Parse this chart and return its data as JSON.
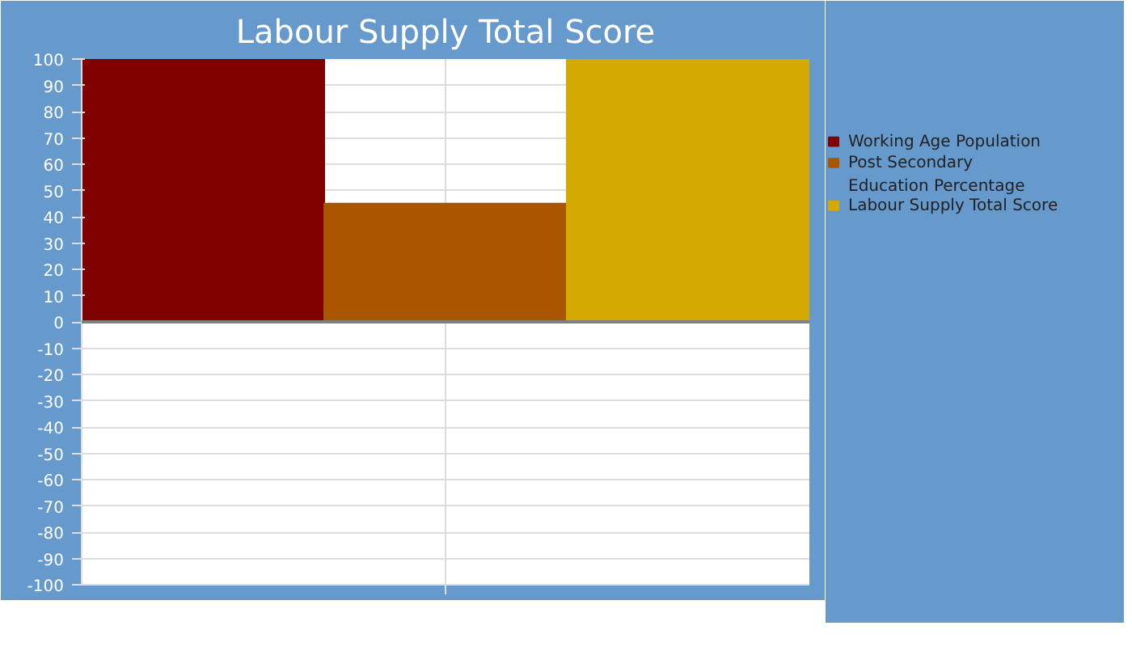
{
  "chart_data": {
    "type": "bar",
    "title": "Labour Supply Total Score",
    "categories": [
      null
    ],
    "series": [
      {
        "name": "Working Age Population",
        "color": "#800000",
        "values": [
          100
        ]
      },
      {
        "name": "Post Secondary\n Education Percentage",
        "color": "#aa5500",
        "values": [
          45
        ]
      },
      {
        "name": "Labour Supply Total Score",
        "color": "#d4aa00",
        "values": [
          100
        ]
      }
    ],
    "ylim": [
      -100,
      100
    ],
    "yticks": [
      -100,
      -90,
      -80,
      -70,
      -60,
      -50,
      -40,
      -30,
      -20,
      -10,
      0,
      10,
      20,
      30,
      40,
      50,
      60,
      70,
      80,
      90,
      100
    ],
    "ref_lines": [
      {
        "axis": "y",
        "value": 0,
        "color": "#808080"
      }
    ],
    "grid": true,
    "legend": "right"
  }
}
